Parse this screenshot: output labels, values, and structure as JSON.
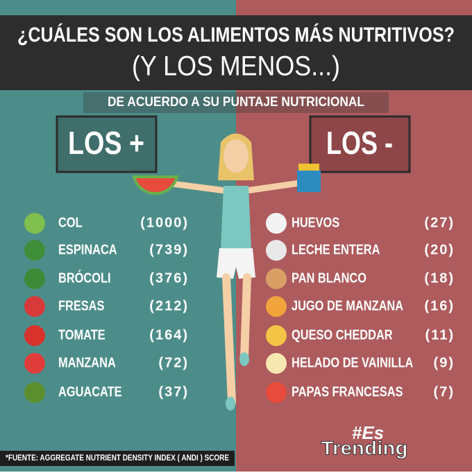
{
  "header": {
    "title": "¿CUÁLES SON LOS ALIMENTOS MÁS NUTRITIVOS?",
    "subtitle": "(Y LOS MENOS...)",
    "tagline": "DE ACUERDO A SU PUNTAJE NUTRICIONAL"
  },
  "left": {
    "heading": "LOS +",
    "items": [
      {
        "name": "COL",
        "score": "(1000)"
      },
      {
        "name": "ESPINACA",
        "score": "(739)"
      },
      {
        "name": "BRÓCOLI",
        "score": "(376)"
      },
      {
        "name": "FRESAS",
        "score": "(212)"
      },
      {
        "name": "TOMATE",
        "score": "(164)"
      },
      {
        "name": "MANZANA",
        "score": "(72)"
      },
      {
        "name": "AGUACATE",
        "score": "(37)"
      }
    ]
  },
  "right": {
    "heading": "LOS -",
    "items": [
      {
        "name": "HUEVOS",
        "score": "(27)"
      },
      {
        "name": "LECHE ENTERA",
        "score": "(20)"
      },
      {
        "name": "PAN BLANCO",
        "score": "(18)"
      },
      {
        "name": "JUGO DE MANZANA",
        "score": "(16)"
      },
      {
        "name": "QUESO CHEDDAR",
        "score": "(11)"
      },
      {
        "name": "HELADO DE VAINILLA",
        "score": "(9)"
      },
      {
        "name": "PAPAS FRANCESAS",
        "score": "(7)"
      }
    ]
  },
  "footer": {
    "source": "*FUENTE: AGGREGATE NUTRIENT DENSITY INDEX ( ANDI ) SCORE",
    "logo_top": "#Es",
    "logo_bottom": "Trending"
  }
}
